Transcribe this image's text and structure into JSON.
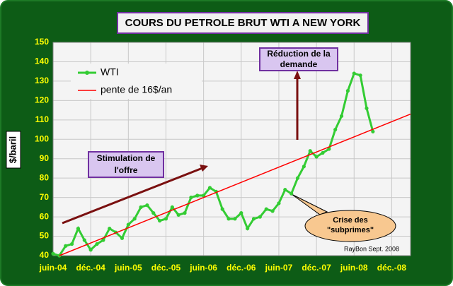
{
  "chart_data": {
    "type": "line",
    "title": "COURS DU PETROLE BRUT WTI A NEW YORK",
    "ylabel": "$/baril",
    "ylim": [
      40,
      150
    ],
    "yticks": [
      40,
      50,
      60,
      70,
      80,
      90,
      100,
      110,
      120,
      130,
      140,
      150
    ],
    "xlim": [
      "2004-06",
      "2009-03"
    ],
    "xticks": [
      {
        "value": "2004-06",
        "label": "juin-04"
      },
      {
        "value": "2004-12",
        "label": "déc.-04"
      },
      {
        "value": "2005-06",
        "label": "juin-05"
      },
      {
        "value": "2005-12",
        "label": "déc.-05"
      },
      {
        "value": "2006-06",
        "label": "juin-06"
      },
      {
        "value": "2006-12",
        "label": "déc.-06"
      },
      {
        "value": "2007-06",
        "label": "juin-07"
      },
      {
        "value": "2007-12",
        "label": "déc.-07"
      },
      {
        "value": "2008-06",
        "label": "juin-08"
      },
      {
        "value": "2008-12",
        "label": "déc.-08"
      }
    ],
    "grid": true,
    "series": [
      {
        "name": "WTI",
        "color": "#33cc33",
        "markers": true,
        "x": [
          "2004-06",
          "2004-07",
          "2004-08",
          "2004-09",
          "2004-10",
          "2004-11",
          "2004-12",
          "2005-01",
          "2005-02",
          "2005-03",
          "2005-04",
          "2005-05",
          "2005-06",
          "2005-07",
          "2005-08",
          "2005-09",
          "2005-10",
          "2005-11",
          "2005-12",
          "2006-01",
          "2006-02",
          "2006-03",
          "2006-04",
          "2006-05",
          "2006-06",
          "2006-07",
          "2006-08",
          "2006-09",
          "2006-10",
          "2006-11",
          "2006-12",
          "2007-01",
          "2007-02",
          "2007-03",
          "2007-04",
          "2007-05",
          "2007-06",
          "2007-07",
          "2007-08",
          "2007-09",
          "2007-10",
          "2007-11",
          "2007-12",
          "2008-01",
          "2008-02",
          "2008-03",
          "2008-04",
          "2008-05",
          "2008-06",
          "2008-07",
          "2008-08",
          "2008-09"
        ],
        "values": [
          41,
          40,
          45,
          46,
          54,
          48,
          43,
          46,
          48,
          54,
          52,
          49,
          56,
          59,
          65,
          66,
          62,
          58,
          59,
          65,
          61,
          62,
          70,
          71,
          71,
          75,
          73,
          64,
          59,
          59,
          62,
          54,
          59,
          60,
          64,
          63,
          67,
          74,
          72,
          80,
          86,
          94,
          91,
          93,
          95,
          105,
          112,
          125,
          134,
          133,
          116,
          104
        ]
      },
      {
        "name": "pente de 16$/an",
        "color": "#ff0000",
        "markers": false,
        "x": [
          "2004-07",
          "2009-03"
        ],
        "values": [
          40,
          113
        ]
      }
    ],
    "annotations": [
      [
        "Stimulation de",
        "l'offre"
      ],
      [
        "Réduction de la",
        "demande"
      ],
      [
        "Crise des",
        "\"subprimes\""
      ]
    ],
    "source": "RayBon Sept.  2008"
  }
}
